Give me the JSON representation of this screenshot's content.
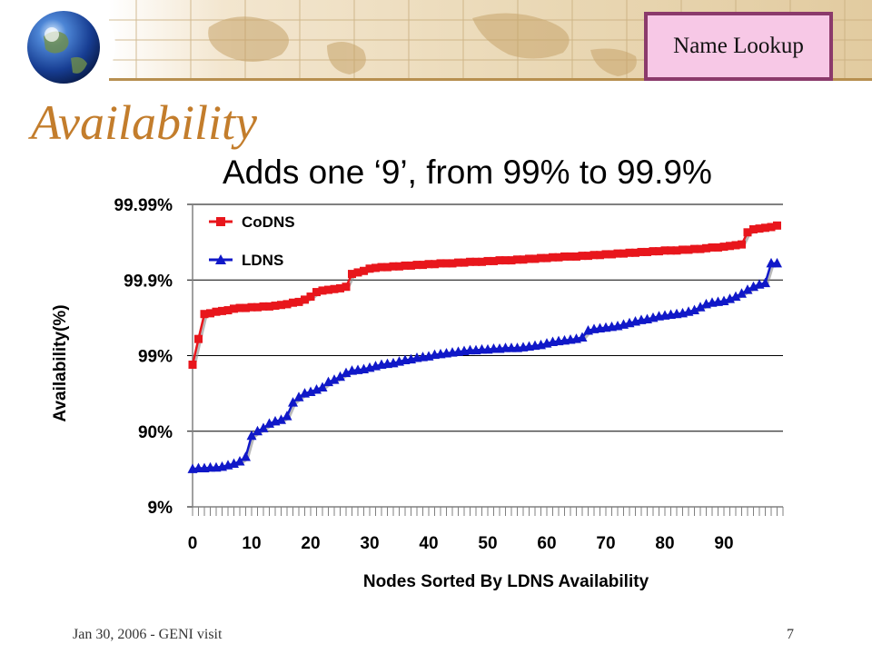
{
  "header": {
    "badge_label": "Name Lookup",
    "title": "Availability"
  },
  "footer": {
    "left_text": "Jan 30, 2006 - GENI visit",
    "page_number": "7"
  },
  "colors": {
    "title": "#c37d2c",
    "badge_border": "#8b3a6b",
    "badge_fill": "#f7c8e6",
    "codns": "#e8161c",
    "ldns": "#1018c8"
  },
  "chart_data": {
    "type": "line",
    "title": "Adds one ‘9’, from 99% to 99.9%",
    "xlabel": "Nodes Sorted By LDNS Availability",
    "ylabel": "Availability(%)",
    "y_scale": "log of unavailability (nines)",
    "y_ticks": [
      "99.99%",
      "99.9%",
      "99%",
      "90%",
      "9%"
    ],
    "y_tick_nines": [
      4,
      3,
      2,
      1,
      0
    ],
    "ylim_nines": [
      0,
      4
    ],
    "x_ticks": [
      "0",
      "10",
      "20",
      "30",
      "40",
      "50",
      "60",
      "70",
      "80",
      "90"
    ],
    "xlim": [
      0,
      100
    ],
    "grid": true,
    "legend_position": "top-left",
    "x": [
      0,
      1,
      2,
      3,
      4,
      5,
      6,
      7,
      8,
      9,
      10,
      11,
      12,
      13,
      14,
      15,
      16,
      17,
      18,
      19,
      20,
      21,
      22,
      23,
      24,
      25,
      26,
      27,
      28,
      29,
      30,
      31,
      32,
      33,
      34,
      35,
      36,
      37,
      38,
      39,
      40,
      41,
      42,
      43,
      44,
      45,
      46,
      47,
      48,
      49,
      50,
      51,
      52,
      53,
      54,
      55,
      56,
      57,
      58,
      59,
      60,
      61,
      62,
      63,
      64,
      65,
      66,
      67,
      68,
      69,
      70,
      71,
      72,
      73,
      74,
      75,
      76,
      77,
      78,
      79,
      80,
      81,
      82,
      83,
      84,
      85,
      86,
      87,
      88,
      89,
      90,
      91,
      92,
      93,
      94,
      95,
      96,
      97,
      98,
      99
    ],
    "series": [
      {
        "name": "CoDNS",
        "color": "#e8161c",
        "marker": "square",
        "values": [
          1.88,
          2.22,
          2.55,
          2.56,
          2.58,
          2.59,
          2.6,
          2.62,
          2.63,
          2.63,
          2.64,
          2.64,
          2.65,
          2.65,
          2.66,
          2.67,
          2.68,
          2.7,
          2.71,
          2.74,
          2.78,
          2.84,
          2.86,
          2.87,
          2.88,
          2.89,
          2.91,
          3.08,
          3.1,
          3.12,
          3.15,
          3.16,
          3.17,
          3.17,
          3.18,
          3.18,
          3.19,
          3.19,
          3.2,
          3.2,
          3.21,
          3.21,
          3.22,
          3.22,
          3.22,
          3.23,
          3.23,
          3.24,
          3.24,
          3.24,
          3.25,
          3.25,
          3.26,
          3.26,
          3.26,
          3.27,
          3.27,
          3.28,
          3.28,
          3.29,
          3.29,
          3.3,
          3.3,
          3.31,
          3.31,
          3.31,
          3.32,
          3.32,
          3.33,
          3.33,
          3.34,
          3.34,
          3.35,
          3.35,
          3.36,
          3.36,
          3.37,
          3.37,
          3.38,
          3.38,
          3.39,
          3.39,
          3.39,
          3.4,
          3.4,
          3.41,
          3.41,
          3.42,
          3.43,
          3.43,
          3.44,
          3.45,
          3.46,
          3.47,
          3.63,
          3.67,
          3.68,
          3.69,
          3.7,
          3.72
        ]
      },
      {
        "name": "LDNS",
        "color": "#1018c8",
        "marker": "triangle",
        "values": [
          0.5,
          0.51,
          0.51,
          0.52,
          0.52,
          0.53,
          0.55,
          0.57,
          0.6,
          0.66,
          0.94,
          1.0,
          1.04,
          1.1,
          1.13,
          1.15,
          1.2,
          1.38,
          1.45,
          1.5,
          1.52,
          1.55,
          1.58,
          1.65,
          1.68,
          1.72,
          1.77,
          1.8,
          1.81,
          1.82,
          1.84,
          1.86,
          1.88,
          1.89,
          1.9,
          1.92,
          1.94,
          1.95,
          1.97,
          1.98,
          1.99,
          2.01,
          2.02,
          2.03,
          2.04,
          2.05,
          2.06,
          2.07,
          2.07,
          2.08,
          2.08,
          2.09,
          2.09,
          2.1,
          2.1,
          2.1,
          2.11,
          2.12,
          2.13,
          2.14,
          2.16,
          2.18,
          2.19,
          2.2,
          2.21,
          2.22,
          2.24,
          2.33,
          2.35,
          2.36,
          2.37,
          2.38,
          2.39,
          2.41,
          2.43,
          2.45,
          2.47,
          2.48,
          2.5,
          2.52,
          2.53,
          2.54,
          2.55,
          2.56,
          2.58,
          2.6,
          2.64,
          2.68,
          2.7,
          2.71,
          2.72,
          2.75,
          2.78,
          2.82,
          2.87,
          2.91,
          2.94,
          2.96,
          3.22,
          3.22
        ]
      }
    ]
  }
}
